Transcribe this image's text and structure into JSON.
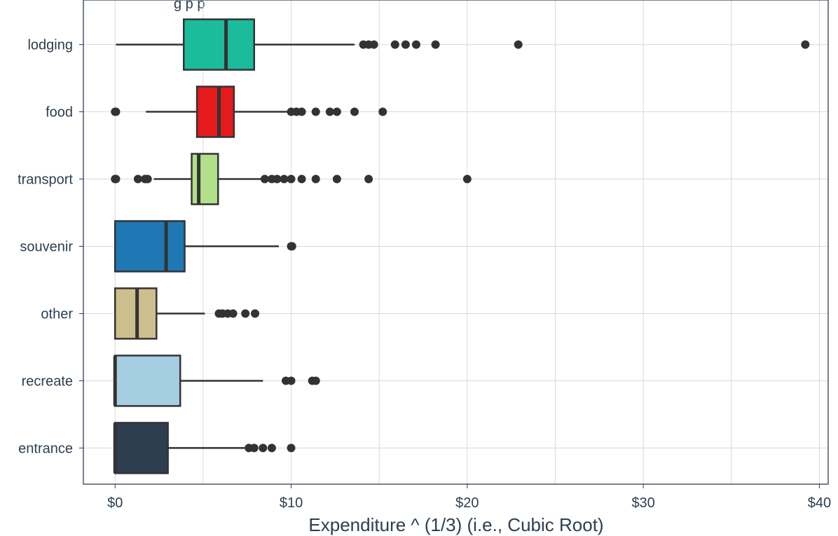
{
  "chart_data": {
    "type": "boxplot",
    "title_fragment": "g  p  p",
    "xlabel": "Expenditure ^ (1/3) (i.e., Cubic Root)",
    "ylabel": "",
    "xlim": [
      -1.8,
      40.5
    ],
    "x_ticks": [
      0,
      10,
      20,
      30,
      40
    ],
    "x_tick_labels": [
      "$0",
      "$10",
      "$20",
      "$30",
      "$40"
    ],
    "grid": true,
    "categories": [
      "lodging",
      "food",
      "transport",
      "souvenir",
      "other",
      "recreate",
      "entrance"
    ],
    "boxes": [
      {
        "category": "lodging",
        "color": "#1abc9c",
        "q1": 3.9,
        "median": 6.3,
        "q3": 7.9,
        "whisker_low": 0.05,
        "whisker_high": 13.6,
        "outliers": [
          14.1,
          14.4,
          14.7,
          15.9,
          16.5,
          17.1,
          18.2,
          22.9,
          39.2
        ]
      },
      {
        "category": "food",
        "color": "#e41a1c",
        "q1": 4.65,
        "median": 5.9,
        "q3": 6.75,
        "whisker_low": 1.75,
        "whisker_high": 9.8,
        "outliers": [
          0.0,
          0.05,
          10.0,
          10.3,
          10.6,
          11.4,
          12.2,
          12.6,
          13.6,
          15.2
        ]
      },
      {
        "category": "transport",
        "color": "#b2df8a",
        "q1": 4.35,
        "median": 4.75,
        "q3": 5.85,
        "whisker_low": 2.2,
        "whisker_high": 8.3,
        "outliers": [
          0.0,
          0.05,
          1.3,
          1.7,
          1.85,
          8.5,
          8.9,
          9.2,
          9.6,
          10.0,
          10.6,
          11.4,
          12.6,
          14.4,
          20.0
        ]
      },
      {
        "category": "souvenir",
        "color": "#1f78b4",
        "q1": 0.0,
        "median": 2.9,
        "q3": 3.95,
        "whisker_low": 0.0,
        "whisker_high": 9.3,
        "outliers": [
          10.0,
          10.05
        ]
      },
      {
        "category": "other",
        "color": "#cdbe8d",
        "q1": 0.0,
        "median": 1.25,
        "q3": 2.35,
        "whisker_low": 0.0,
        "whisker_high": 5.1,
        "outliers": [
          5.9,
          6.1,
          6.4,
          6.7,
          7.4,
          7.95
        ]
      },
      {
        "category": "recreate",
        "color": "#a6cee3",
        "q1": 0.0,
        "median": 0.0,
        "q3": 3.7,
        "whisker_low": 0.0,
        "whisker_high": 8.4,
        "outliers": [
          9.7,
          10.0,
          11.2,
          11.4
        ]
      },
      {
        "category": "entrance",
        "color": "#2c3e50",
        "q1": 0.0,
        "median": 0.0,
        "q3": 3.0,
        "whisker_low": 0.0,
        "whisker_high": 7.4,
        "outliers": [
          7.6,
          7.9,
          8.4,
          8.9,
          10.0
        ]
      }
    ],
    "colors": {
      "axis": "#2c3e50",
      "grid": "#d9d9d9",
      "outline": "#333333",
      "outlier": "#333333"
    }
  }
}
